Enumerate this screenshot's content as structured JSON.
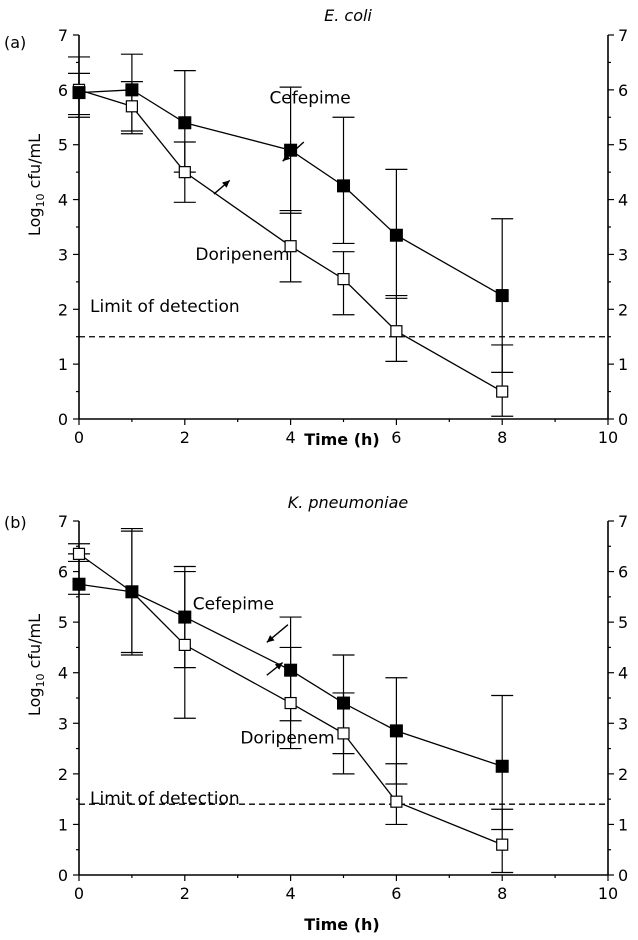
{
  "chart_data": [
    {
      "type": "line",
      "panel_label": "(a)",
      "title": "E. coli",
      "xlabel": "Time (h)",
      "ylabel_main": "Log",
      "ylabel_sub": "10",
      "ylabel_rest": " cfu/mL",
      "xlim": [
        0,
        10
      ],
      "ylim": [
        0,
        7
      ],
      "xticks": [
        "0",
        "2",
        "4",
        "6",
        "8",
        "10"
      ],
      "yticks": [
        "0",
        "1",
        "2",
        "3",
        "4",
        "5",
        "6",
        "7"
      ],
      "limit_of_detection": 1.5,
      "limit_label": "Limit of detection",
      "series": [
        {
          "name": "Cefepime",
          "marker": "filled-square",
          "x": [
            0,
            1,
            2,
            4,
            5,
            6,
            8
          ],
          "y": [
            5.95,
            6.0,
            5.4,
            4.9,
            4.25,
            3.35,
            2.25
          ],
          "err_low": [
            5.55,
            5.25,
            4.5,
            3.75,
            3.2,
            2.2,
            0.85
          ],
          "err_high": [
            6.6,
            6.65,
            6.35,
            6.05,
            5.5,
            4.55,
            3.65
          ]
        },
        {
          "name": "Doripenem",
          "marker": "open-square",
          "x": [
            0,
            1,
            2,
            4,
            5,
            6,
            8
          ],
          "y": [
            6.0,
            5.7,
            4.5,
            3.15,
            2.55,
            1.6,
            0.5
          ],
          "err_low": [
            5.5,
            5.2,
            3.95,
            2.5,
            1.9,
            1.05,
            0.05
          ],
          "err_high": [
            6.3,
            6.15,
            5.05,
            3.8,
            3.05,
            2.25,
            1.35
          ]
        }
      ],
      "annotations": [
        {
          "text": "Cefepime",
          "tx": 3.6,
          "ty": 5.75
        },
        {
          "text": "Doripenem",
          "tx": 2.2,
          "ty": 2.9
        }
      ],
      "arrows": [
        {
          "from": [
            4.25,
            5.05
          ],
          "to": [
            3.85,
            4.7
          ]
        },
        {
          "from": [
            2.55,
            4.1
          ],
          "to": [
            2.85,
            4.35
          ]
        }
      ]
    },
    {
      "type": "line",
      "panel_label": "(b)",
      "title": "K. pneumoniae",
      "xlabel": "Time (h)",
      "ylabel_main": "Log",
      "ylabel_sub": "10",
      "ylabel_rest": " cfu/mL",
      "xlim": [
        0,
        10
      ],
      "ylim": [
        0,
        7
      ],
      "xticks": [
        "0",
        "2",
        "4",
        "6",
        "8",
        "10"
      ],
      "yticks": [
        "0",
        "1",
        "2",
        "3",
        "4",
        "5",
        "6",
        "7"
      ],
      "limit_of_detection": 1.4,
      "limit_label": "Limit of detection",
      "series": [
        {
          "name": "Cefepime",
          "marker": "filled-square",
          "x": [
            0,
            1,
            2,
            4,
            5,
            6,
            8
          ],
          "y": [
            5.75,
            5.6,
            5.1,
            4.05,
            3.4,
            2.85,
            2.15
          ],
          "err_low": [
            5.55,
            4.4,
            4.1,
            3.05,
            2.4,
            1.8,
            0.9
          ],
          "err_high": [
            6.35,
            6.8,
            6.1,
            5.1,
            4.35,
            3.9,
            3.55
          ]
        },
        {
          "name": "Doripenem",
          "marker": "open-square",
          "x": [
            0,
            1,
            2,
            4,
            5,
            6,
            8
          ],
          "y": [
            6.35,
            5.6,
            4.55,
            3.4,
            2.8,
            1.45,
            0.6
          ],
          "err_low": [
            6.2,
            4.35,
            3.1,
            2.5,
            2.0,
            1.0,
            0.05
          ],
          "err_high": [
            6.55,
            6.85,
            6.0,
            4.5,
            3.6,
            2.2,
            1.3
          ]
        }
      ],
      "annotations": [
        {
          "text": "Cefepime",
          "tx": 2.15,
          "ty": 5.25
        },
        {
          "text": "Doripenem",
          "tx": 3.05,
          "ty": 2.6
        }
      ],
      "arrows": [
        {
          "from": [
            3.95,
            4.95
          ],
          "to": [
            3.55,
            4.6
          ]
        },
        {
          "from": [
            3.55,
            3.95
          ],
          "to": [
            3.85,
            4.2
          ]
        }
      ]
    }
  ]
}
